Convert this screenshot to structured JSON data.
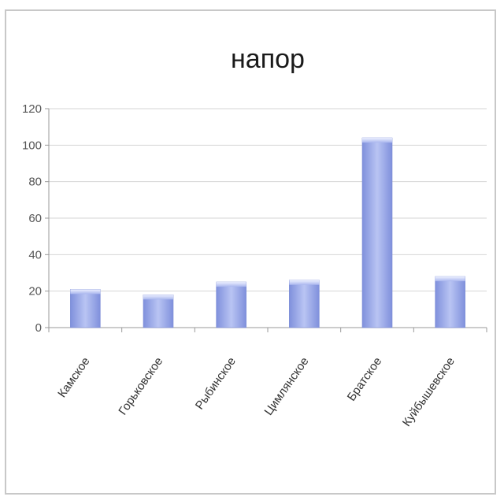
{
  "chart_data": {
    "type": "bar",
    "title": "напор",
    "xlabel": "",
    "ylabel": "",
    "categories": [
      "Камское",
      "Горьковское",
      "Рыбинское",
      "Цимлянское",
      "Братское",
      "Куйбышевское"
    ],
    "values": [
      21,
      18,
      25,
      26,
      104,
      28
    ],
    "ylim": [
      0,
      120
    ],
    "yticks": [
      0,
      20,
      40,
      60,
      80,
      100,
      120
    ],
    "grid": true,
    "legend": "none",
    "bar_color": "#8f9fe4"
  }
}
